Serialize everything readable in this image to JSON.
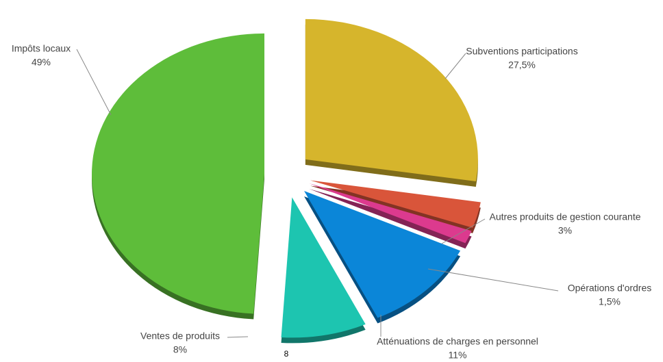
{
  "chart_data": {
    "type": "pie",
    "categories": [
      "Subventions participations",
      "Autres produits de gestion courante",
      "Opérations d'ordres",
      "Atténuations de charges en personnel",
      "Ventes de produits",
      "Impôts locaux"
    ],
    "values": [
      27.5,
      3,
      1.5,
      11,
      8,
      49
    ],
    "value_labels": [
      "27,5%",
      "3%",
      "1,5%",
      "11%",
      "8%",
      "49%"
    ],
    "colors": [
      "#d6b52c",
      "#d9553a",
      "#dc3a8e",
      "#0b86d8",
      "#1dc5b0",
      "#5ebd3a"
    ]
  },
  "page_number": "8"
}
